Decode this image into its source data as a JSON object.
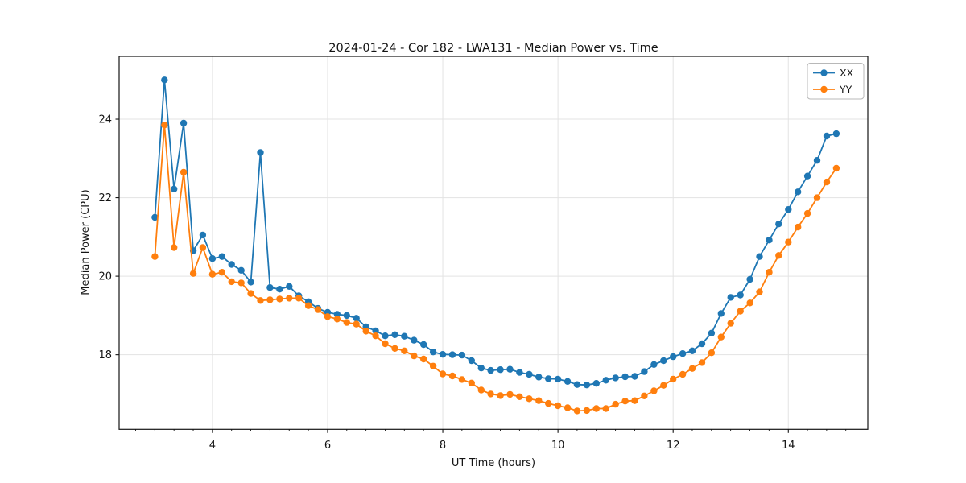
{
  "figure": {
    "title": "2024-01-24 - Cor 182 - LWA131 - Median Power vs. Time"
  },
  "chart_data": {
    "type": "line",
    "title": "2024-01-24 - Cor 182 - LWA131 - Median Power vs. Time",
    "xlabel": "UT Time (hours)",
    "ylabel": "Median Power (CPU)",
    "xlim": [
      2.38,
      15.38
    ],
    "ylim": [
      16.1,
      25.6
    ],
    "x_ticks": [
      4,
      6,
      8,
      10,
      12,
      14
    ],
    "y_ticks": [
      18,
      20,
      22,
      24
    ],
    "x_minor_tick_step": 0.3333,
    "grid": true,
    "legend_position": "upper right",
    "grid_color": "#e3e3e3",
    "x": [
      3.0,
      3.167,
      3.333,
      3.5,
      3.667,
      3.833,
      4.0,
      4.167,
      4.333,
      4.5,
      4.667,
      4.833,
      5.0,
      5.167,
      5.333,
      5.5,
      5.667,
      5.833,
      6.0,
      6.167,
      6.333,
      6.5,
      6.667,
      6.833,
      7.0,
      7.167,
      7.333,
      7.5,
      7.667,
      7.833,
      8.0,
      8.167,
      8.333,
      8.5,
      8.667,
      8.833,
      9.0,
      9.167,
      9.333,
      9.5,
      9.667,
      9.833,
      10.0,
      10.167,
      10.333,
      10.5,
      10.667,
      10.833,
      11.0,
      11.167,
      11.333,
      11.5,
      11.667,
      11.833,
      12.0,
      12.167,
      12.333,
      12.5,
      12.667,
      12.833,
      13.0,
      13.167,
      13.333,
      13.5,
      13.667,
      13.833,
      14.0,
      14.167,
      14.333,
      14.5,
      14.667,
      14.833
    ],
    "series": [
      {
        "name": "XX",
        "color": "#1f77b4",
        "values": [
          21.5,
          25.0,
          22.22,
          23.9,
          20.65,
          21.05,
          20.45,
          20.5,
          20.3,
          20.15,
          19.85,
          23.15,
          19.71,
          19.67,
          19.74,
          19.5,
          19.35,
          19.18,
          19.08,
          19.03,
          19.0,
          18.93,
          18.71,
          18.61,
          18.48,
          18.51,
          18.47,
          18.37,
          18.26,
          18.07,
          18.01,
          18.0,
          17.99,
          17.85,
          17.66,
          17.6,
          17.62,
          17.63,
          17.55,
          17.5,
          17.43,
          17.39,
          17.38,
          17.32,
          17.24,
          17.23,
          17.27,
          17.35,
          17.41,
          17.44,
          17.45,
          17.57,
          17.75,
          17.85,
          17.95,
          18.03,
          18.1,
          18.28,
          18.55,
          19.05,
          19.46,
          19.52,
          19.92,
          20.5,
          20.92,
          21.33,
          21.7,
          22.15,
          22.55,
          22.95,
          23.57,
          23.63
        ]
      },
      {
        "name": "YY",
        "color": "#ff7f0e",
        "values": [
          20.5,
          23.85,
          20.73,
          22.65,
          20.07,
          20.73,
          20.05,
          20.1,
          19.86,
          19.83,
          19.56,
          19.38,
          19.4,
          19.42,
          19.44,
          19.44,
          19.25,
          19.15,
          18.97,
          18.91,
          18.82,
          18.78,
          18.6,
          18.48,
          18.28,
          18.16,
          18.1,
          17.97,
          17.89,
          17.71,
          17.51,
          17.46,
          17.37,
          17.28,
          17.1,
          17.0,
          16.96,
          16.99,
          16.93,
          16.88,
          16.83,
          16.76,
          16.7,
          16.65,
          16.57,
          16.58,
          16.63,
          16.63,
          16.74,
          16.82,
          16.83,
          16.95,
          17.08,
          17.22,
          17.38,
          17.5,
          17.65,
          17.8,
          18.05,
          18.45,
          18.8,
          19.11,
          19.32,
          19.6,
          20.1,
          20.53,
          20.87,
          21.25,
          21.6,
          22.0,
          22.4,
          22.75
        ]
      }
    ]
  }
}
